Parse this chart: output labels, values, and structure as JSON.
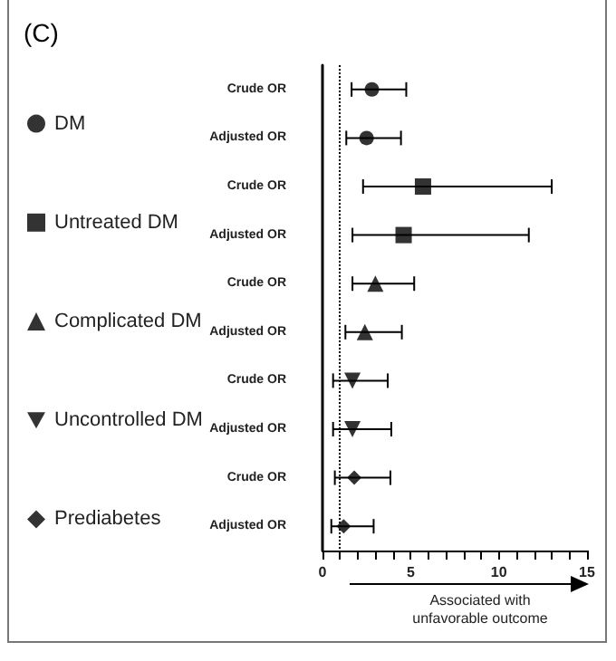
{
  "chart_data": {
    "type": "scatter",
    "orientation": "horizontal",
    "title": "(C)",
    "categories": [
      "Crude OR",
      "Adjusted OR",
      "Crude OR",
      "Adjusted OR",
      "Crude OR",
      "Adjusted OR",
      "Crude OR",
      "Adjusted OR",
      "Crude OR",
      "Adjusted OR"
    ],
    "series": [
      {
        "name": "DM",
        "color": "#000000",
        "marker": "circle",
        "values": [
          2.8,
          2.5,
          null,
          null,
          null,
          null,
          null,
          null,
          null,
          null
        ],
        "errors": [
          [
            1.65,
            4.75
          ],
          [
            1.35,
            4.45
          ],
          null,
          null,
          null,
          null,
          null,
          null,
          null,
          null
        ]
      },
      {
        "name": "Untreated DM",
        "color": "#000000",
        "marker": "square",
        "values": [
          null,
          null,
          5.7,
          4.6,
          null,
          null,
          null,
          null,
          null,
          null
        ],
        "errors": [
          null,
          null,
          [
            2.3,
            13
          ],
          [
            1.7,
            11.7
          ],
          null,
          null,
          null,
          null,
          null,
          null
        ]
      },
      {
        "name": "Complicated DM",
        "color": "#000000",
        "marker": "triangle",
        "values": [
          null,
          null,
          null,
          null,
          3,
          2.4,
          null,
          null,
          null,
          null
        ],
        "errors": [
          null,
          null,
          null,
          null,
          [
            1.7,
            5.2
          ],
          [
            1.3,
            4.5
          ],
          null,
          null,
          null,
          null
        ]
      },
      {
        "name": "Uncontrolled DM",
        "color": "#000000",
        "marker": "triangle-down",
        "values": [
          null,
          null,
          null,
          null,
          null,
          null,
          1.7,
          1.7,
          null,
          null
        ],
        "errors": [
          null,
          null,
          null,
          null,
          null,
          null,
          [
            0.6,
            3.7
          ],
          [
            0.6,
            3.9
          ],
          null,
          null
        ]
      },
      {
        "name": "Prediabetes",
        "color": "#000000",
        "marker": "diamond",
        "values": [
          null,
          null,
          null,
          null,
          null,
          null,
          null,
          null,
          1.8,
          1.2
        ],
        "errors": [
          null,
          null,
          null,
          null,
          null,
          null,
          null,
          null,
          [
            0.7,
            3.85
          ],
          [
            0.5,
            2.9
          ]
        ]
      }
    ],
    "xlim": [
      0,
      15
    ],
    "xticks": [
      0,
      {
        "value": 1,
        "label": null
      },
      {
        "value": 2,
        "label": null
      },
      {
        "value": 3,
        "label": null
      },
      {
        "value": 4,
        "label": null
      },
      5,
      {
        "value": 6,
        "label": null
      },
      {
        "value": 7,
        "label": null
      },
      {
        "value": 8,
        "label": null
      },
      {
        "value": 9,
        "label": null
      },
      10,
      {
        "value": 11,
        "label": null
      },
      {
        "value": 12,
        "label": null
      },
      {
        "value": 13,
        "label": null
      },
      {
        "value": 14,
        "label": null
      },
      15
    ],
    "ref_lines": [
      {
        "axis": "x",
        "value": 1,
        "line_style": "dotted",
        "color": "#000000"
      }
    ],
    "annotations": [
      "Associated with unfavorable outcome"
    ],
    "legend": "left",
    "grid": false
  }
}
